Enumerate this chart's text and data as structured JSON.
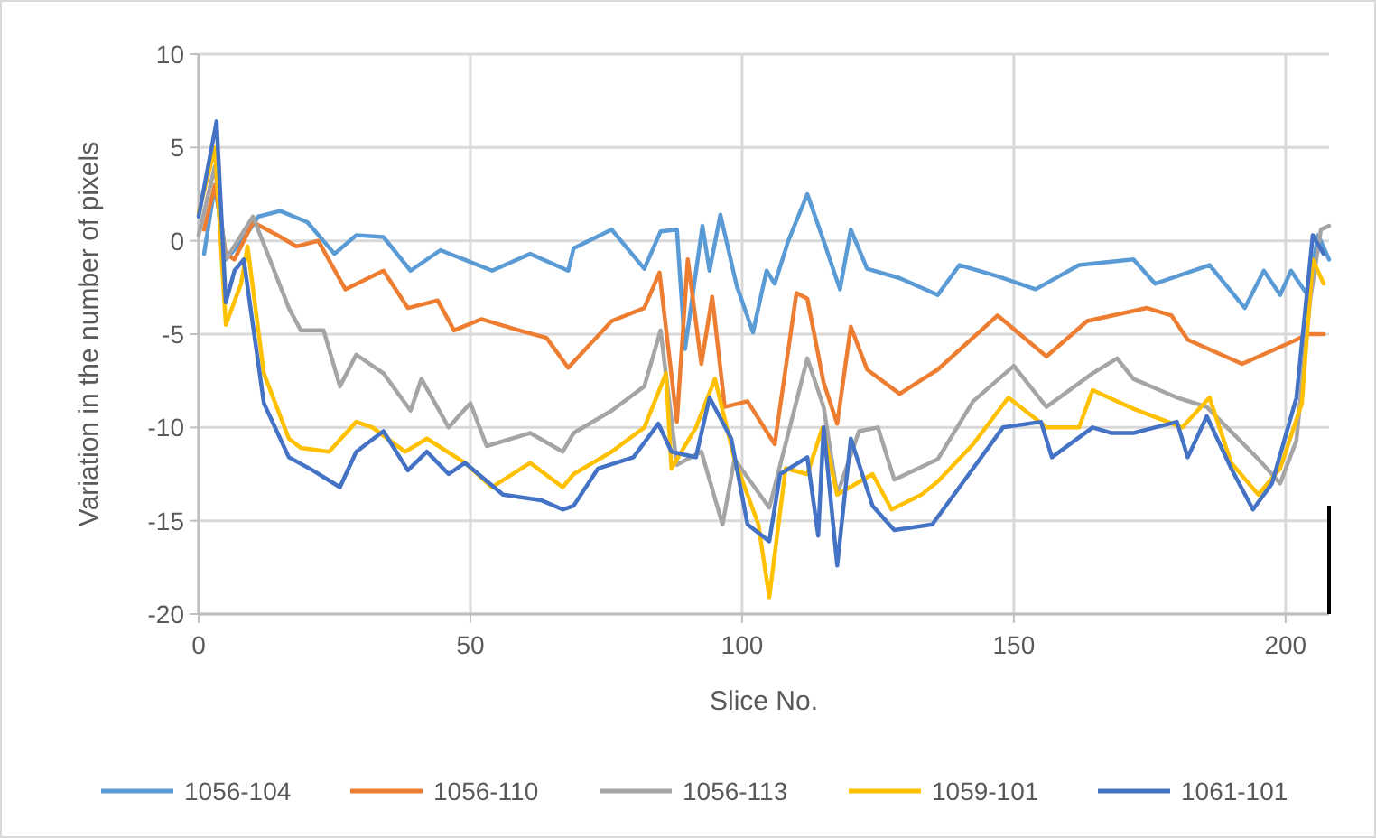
{
  "chart_data": {
    "type": "line",
    "xlabel": "Slice No.",
    "ylabel": "Variation in the number of pixels",
    "xlim": [
      0,
      208
    ],
    "ylim": [
      -20,
      10
    ],
    "xticks": [
      0,
      50,
      100,
      150,
      200
    ],
    "yticks": [
      -20,
      -15,
      -10,
      -5,
      0,
      5,
      10
    ],
    "grid": true,
    "legend": "bottom",
    "marker": "none",
    "line_style": "solid",
    "series": [
      {
        "name": "1056-104",
        "color": "#5b9bd5",
        "x": [
          1,
          3,
          5,
          8,
          11,
          15,
          20,
          25,
          29,
          34,
          39,
          44.5,
          54,
          61,
          68,
          69,
          76,
          82,
          85,
          88,
          89.5,
          92.7,
          94,
          96,
          99,
          102,
          104.5,
          106,
          108.5,
          112,
          115,
          118,
          120,
          123,
          129,
          136,
          140,
          147,
          154,
          162,
          172,
          176,
          186,
          192.5,
          196,
          199,
          201,
          204,
          206,
          208
        ],
        "values": [
          -0.7,
          3,
          -1,
          0,
          1.3,
          1.6,
          1,
          -0.7,
          0.3,
          0.2,
          -1.6,
          -0.5,
          -1.6,
          -0.7,
          -1.6,
          -0.4,
          0.6,
          -1.5,
          0.5,
          0.6,
          -5.8,
          0.8,
          -1.6,
          1.4,
          -2.4,
          -4.9,
          -1.6,
          -2.3,
          0,
          2.5,
          0,
          -2.6,
          0.6,
          -1.5,
          -2,
          -2.9,
          -1.3,
          -1.9,
          -2.6,
          -1.3,
          -1,
          -2.3,
          -1.3,
          -3.6,
          -1.6,
          -2.9,
          -1.6,
          -2.9,
          0.3,
          -1
        ]
      },
      {
        "name": "1056-110",
        "color": "#ed7d31",
        "x": [
          1,
          3,
          5,
          6.6,
          10,
          14.5,
          18,
          22,
          27,
          34,
          38.5,
          44,
          47,
          52,
          59,
          64,
          68,
          76,
          82,
          84.8,
          88,
          90,
          92.5,
          94.5,
          96.8,
          101,
          106,
          110,
          112,
          115,
          117.5,
          120,
          123,
          129,
          136,
          147,
          156,
          163.5,
          174.5,
          179,
          182,
          192,
          202,
          204,
          207
        ],
        "values": [
          0.6,
          3,
          -0.7,
          -1,
          1,
          0.3,
          -0.3,
          0,
          -2.6,
          -1.6,
          -3.6,
          -3.2,
          -4.8,
          -4.2,
          -4.8,
          -5.2,
          -6.8,
          -4.3,
          -3.6,
          -1.7,
          -9.7,
          -1,
          -6.6,
          -3,
          -8.9,
          -8.6,
          -10.9,
          -2.8,
          -3.1,
          -7.6,
          -9.8,
          -4.6,
          -6.9,
          -8.2,
          -6.9,
          -4,
          -6.2,
          -4.3,
          -3.6,
          -4,
          -5.3,
          -6.6,
          -5.3,
          -5,
          -5
        ]
      },
      {
        "name": "1056-113",
        "color": "#a5a5a5",
        "x": [
          0,
          3,
          5,
          10,
          16.6,
          18.8,
          23,
          26,
          29,
          34,
          39,
          41,
          46,
          50,
          53,
          61,
          67,
          69,
          76,
          82,
          85,
          88,
          92.5,
          96.4,
          98.6,
          105,
          110,
          112,
          115,
          117.5,
          121.5,
          125,
          128,
          136,
          142.5,
          150,
          156,
          164.5,
          169,
          172,
          180,
          185.5,
          195,
          199,
          202,
          204.5,
          206.5,
          208
        ],
        "values": [
          0.3,
          4,
          -1,
          1.3,
          -3.6,
          -4.8,
          -4.8,
          -7.8,
          -6.1,
          -7.1,
          -9.1,
          -7.4,
          -10,
          -8.7,
          -11,
          -10.3,
          -11.3,
          -10.3,
          -9.1,
          -7.8,
          -4.8,
          -12,
          -11.3,
          -15.2,
          -11.7,
          -14.3,
          -8.6,
          -6.3,
          -8.9,
          -13.6,
          -10.2,
          -10,
          -12.8,
          -11.7,
          -8.6,
          -6.7,
          -8.9,
          -7.1,
          -6.3,
          -7.4,
          -8.4,
          -8.9,
          -11.7,
          -13,
          -10.7,
          -3.2,
          0.6,
          0.8
        ]
      },
      {
        "name": "1059-101",
        "color": "#ffc000",
        "x": [
          0,
          3,
          5,
          7.8,
          9,
          12,
          16.6,
          18.8,
          24,
          29,
          32,
          38,
          42,
          49,
          54,
          61,
          67,
          69,
          76,
          82,
          86,
          87,
          91.5,
          95,
          98.6,
          103,
          105,
          108,
          112,
          114.8,
          117.5,
          124,
          127.5,
          133,
          136,
          142.5,
          149,
          156,
          162,
          164.5,
          172,
          181,
          186,
          190,
          195,
          199,
          203,
          205,
          207
        ],
        "values": [
          1.5,
          5,
          -4.5,
          -2.3,
          -0.3,
          -7.1,
          -10.6,
          -11.1,
          -11.3,
          -9.7,
          -10,
          -11.3,
          -10.6,
          -11.9,
          -13.2,
          -11.9,
          -13.2,
          -12.5,
          -11.3,
          -10,
          -7.1,
          -12.2,
          -10,
          -7.4,
          -11.7,
          -15.2,
          -19.1,
          -12.2,
          -12.5,
          -10,
          -13.6,
          -12.5,
          -14.4,
          -13.6,
          -12.9,
          -10.9,
          -8.4,
          -10,
          -10,
          -8,
          -9,
          -10,
          -8.4,
          -11.9,
          -13.6,
          -12.2,
          -8.7,
          -1,
          -2.3
        ]
      },
      {
        "name": "1061-101",
        "color": "#4472c4",
        "x": [
          0,
          3.3,
          5,
          6.6,
          8.3,
          12,
          16.6,
          21,
          26,
          29,
          34,
          38.5,
          42,
          46,
          49,
          56,
          63,
          67,
          69,
          73.5,
          80,
          84.6,
          87,
          91.5,
          94,
          98,
          101,
          105,
          107,
          112,
          114,
          115,
          117.5,
          120,
          124,
          128,
          135,
          136,
          142.5,
          148,
          155,
          157,
          164.5,
          168,
          172,
          180,
          182,
          185.5,
          190,
          194,
          197.5,
          202,
          205,
          207
        ],
        "values": [
          1.3,
          6.4,
          -3.3,
          -1.6,
          -1,
          -8.7,
          -11.6,
          -12.3,
          -13.2,
          -11.3,
          -10.2,
          -12.3,
          -11.3,
          -12.5,
          -11.9,
          -13.6,
          -13.9,
          -14.4,
          -14.2,
          -12.2,
          -11.6,
          -9.8,
          -11.3,
          -11.6,
          -8.4,
          -10.6,
          -15.2,
          -16.1,
          -12.5,
          -11.6,
          -15.8,
          -10,
          -17.4,
          -10.6,
          -14.2,
          -15.5,
          -15.2,
          -14.8,
          -12.2,
          -10,
          -9.7,
          -11.6,
          -10,
          -10.3,
          -10.3,
          -9.7,
          -11.6,
          -9.4,
          -12.2,
          -14.4,
          -13,
          -8.4,
          0.3,
          -0.7
        ]
      }
    ]
  }
}
